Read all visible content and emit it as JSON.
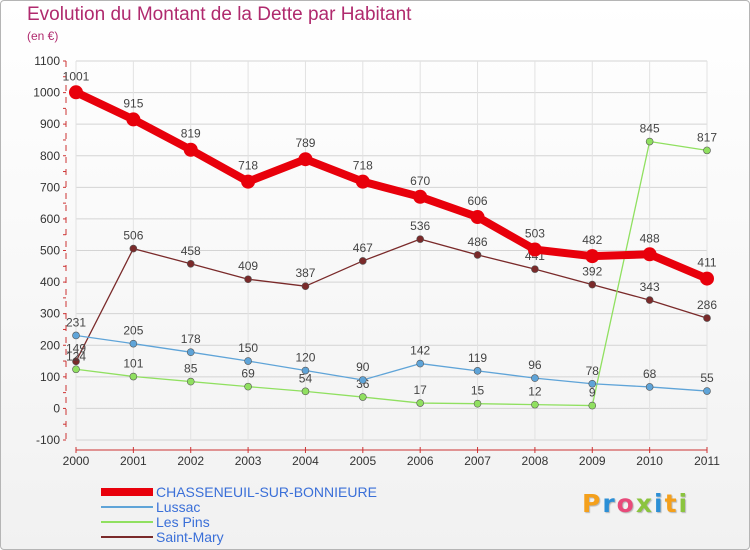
{
  "title": "Evolution du Montant de la Dette par Habitant",
  "unit_label": "(en €)",
  "logo": {
    "text": "Proxiti",
    "letters": [
      "P",
      "r",
      "o",
      "x",
      "i",
      "t",
      "i"
    ],
    "colors": [
      "#f4a01c",
      "#2c8fd6",
      "#e84a7a",
      "#8bc43f",
      "#2c8fd6",
      "#f4a01c",
      "#8bc43f"
    ]
  },
  "chart_data": {
    "type": "line",
    "title": "Evolution du Montant de la Dette par Habitant",
    "ylabel": "(en €)",
    "xlabel": "",
    "x": [
      "2000",
      "2001",
      "2002",
      "2003",
      "2004",
      "2005",
      "2006",
      "2007",
      "2008",
      "2009",
      "2010",
      "2011"
    ],
    "ylim": [
      -100,
      1100
    ],
    "yticks": [
      -100,
      0,
      100,
      200,
      300,
      400,
      500,
      600,
      700,
      800,
      900,
      1000,
      1100
    ],
    "grid": true,
    "legend_position": "bottom-left",
    "series": [
      {
        "name": "CHASSENEUIL-SUR-BONNIEURE",
        "color": "#e8000b",
        "values": [
          1001,
          915,
          819,
          718,
          789,
          718,
          670,
          606,
          503,
          482,
          488,
          411
        ]
      },
      {
        "name": "Lussac",
        "color": "#5fa4d8",
        "values": [
          231,
          205,
          178,
          150,
          120,
          90,
          142,
          119,
          96,
          78,
          68,
          55
        ]
      },
      {
        "name": "Les Pins",
        "color": "#90e060",
        "values": [
          124,
          101,
          85,
          69,
          54,
          36,
          17,
          15,
          12,
          9,
          845,
          817
        ]
      },
      {
        "name": "Saint-Mary",
        "color": "#7a2a2a",
        "values": [
          149,
          506,
          458,
          409,
          387,
          467,
          536,
          486,
          441,
          392,
          343,
          286
        ]
      }
    ]
  }
}
